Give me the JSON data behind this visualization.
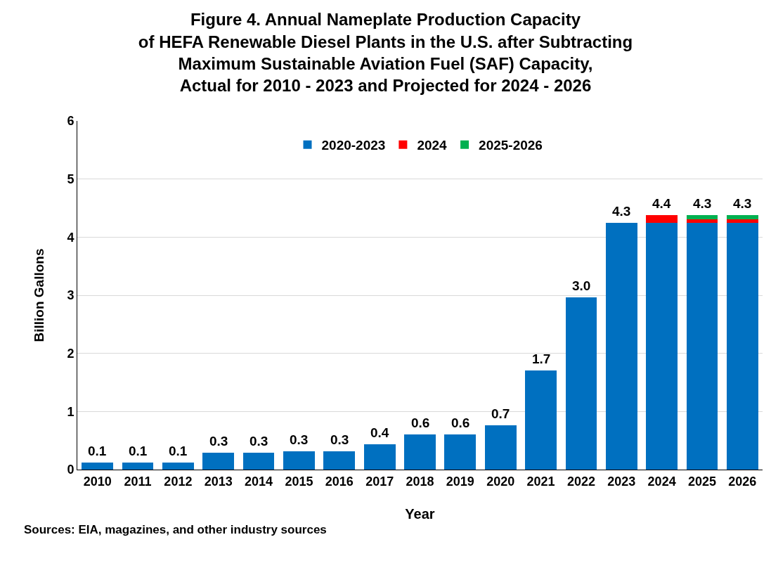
{
  "chart_data": {
    "type": "bar",
    "title": "Figure 4. Annual Nameplate Production Capacity\nof HEFA Renewable Diesel Plants in the U.S. after Subtracting\nMaximum Sustainable Aviation Fuel (SAF) Capacity,\nActual for 2010 - 2023 and Projected for 2024 - 2026",
    "xlabel": "Year",
    "ylabel": "Billion Gallons",
    "categories": [
      "2010",
      "2011",
      "2012",
      "2013",
      "2014",
      "2015",
      "2016",
      "2017",
      "2018",
      "2019",
      "2020",
      "2021",
      "2022",
      "2023",
      "2024",
      "2025",
      "2026"
    ],
    "stacked": true,
    "series": [
      {
        "name": "2020-2023",
        "color": "#0070c0",
        "values": [
          0.12,
          0.12,
          0.12,
          0.29,
          0.29,
          0.32,
          0.32,
          0.43,
          0.61,
          0.61,
          0.76,
          1.71,
          2.96,
          4.25,
          4.25,
          4.25,
          4.25
        ]
      },
      {
        "name": "2024",
        "color": "#ff0000",
        "values": [
          null,
          null,
          null,
          null,
          null,
          null,
          null,
          null,
          null,
          null,
          null,
          null,
          null,
          null,
          0.13,
          0.06,
          0.06
        ]
      },
      {
        "name": "2025-2026",
        "color": "#00b050",
        "values": [
          null,
          null,
          null,
          null,
          null,
          null,
          null,
          null,
          null,
          null,
          null,
          null,
          null,
          null,
          null,
          0.07,
          0.07
        ]
      }
    ],
    "totals": [
      "0.1",
      "0.1",
      "0.1",
      "0.3",
      "0.3",
      "0.3",
      "0.3",
      "0.4",
      "0.6",
      "0.6",
      "0.7",
      "1.7",
      "3.0",
      "4.3",
      "4.4",
      "4.3",
      "4.3"
    ],
    "ylim": [
      0,
      6
    ],
    "yticks": [
      0,
      1,
      2,
      3,
      4,
      5,
      6
    ],
    "grid": "y",
    "legend": "top",
    "annotations": [
      "Sources: EIA, magazines, and other industry sources"
    ]
  }
}
